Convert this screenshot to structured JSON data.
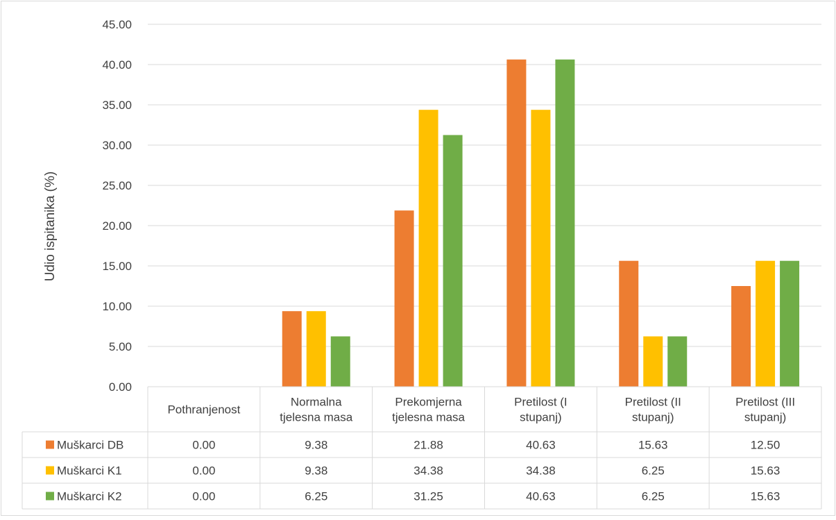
{
  "chart_data": {
    "type": "bar",
    "ylabel": "Udio ispitanika (%)",
    "ylim": [
      0,
      45
    ],
    "yticks": [
      "0.00",
      "5.00",
      "10.00",
      "15.00",
      "20.00",
      "25.00",
      "30.00",
      "35.00",
      "40.00",
      "45.00"
    ],
    "grid": true,
    "legend": "data-table",
    "categories": [
      [
        "Pothranjenost"
      ],
      [
        "Normalna",
        "tjelesna masa"
      ],
      [
        "Prekomjerna",
        "tjelesna masa"
      ],
      [
        "Pretilost (I",
        "stupanj)"
      ],
      [
        "Pretilost (II",
        "stupanj)"
      ],
      [
        "Pretilost (III",
        "stupanj)"
      ]
    ],
    "series": [
      {
        "name": "Muškarci DB",
        "color": "#ED7D31",
        "values": [
          0.0,
          9.38,
          21.88,
          40.63,
          15.63,
          12.5
        ],
        "labels": [
          "0.00",
          "9.38",
          "21.88",
          "40.63",
          "15.63",
          "12.50"
        ]
      },
      {
        "name": "Muškarci K1",
        "color": "#FFC000",
        "values": [
          0.0,
          9.38,
          34.38,
          34.38,
          6.25,
          15.63
        ],
        "labels": [
          "0.00",
          "9.38",
          "34.38",
          "34.38",
          "6.25",
          "15.63"
        ]
      },
      {
        "name": "Muškarci K2",
        "color": "#70AD47",
        "values": [
          0.0,
          6.25,
          31.25,
          40.63,
          6.25,
          15.63
        ],
        "labels": [
          "0.00",
          "6.25",
          "31.25",
          "40.63",
          "6.25",
          "15.63"
        ]
      }
    ]
  }
}
